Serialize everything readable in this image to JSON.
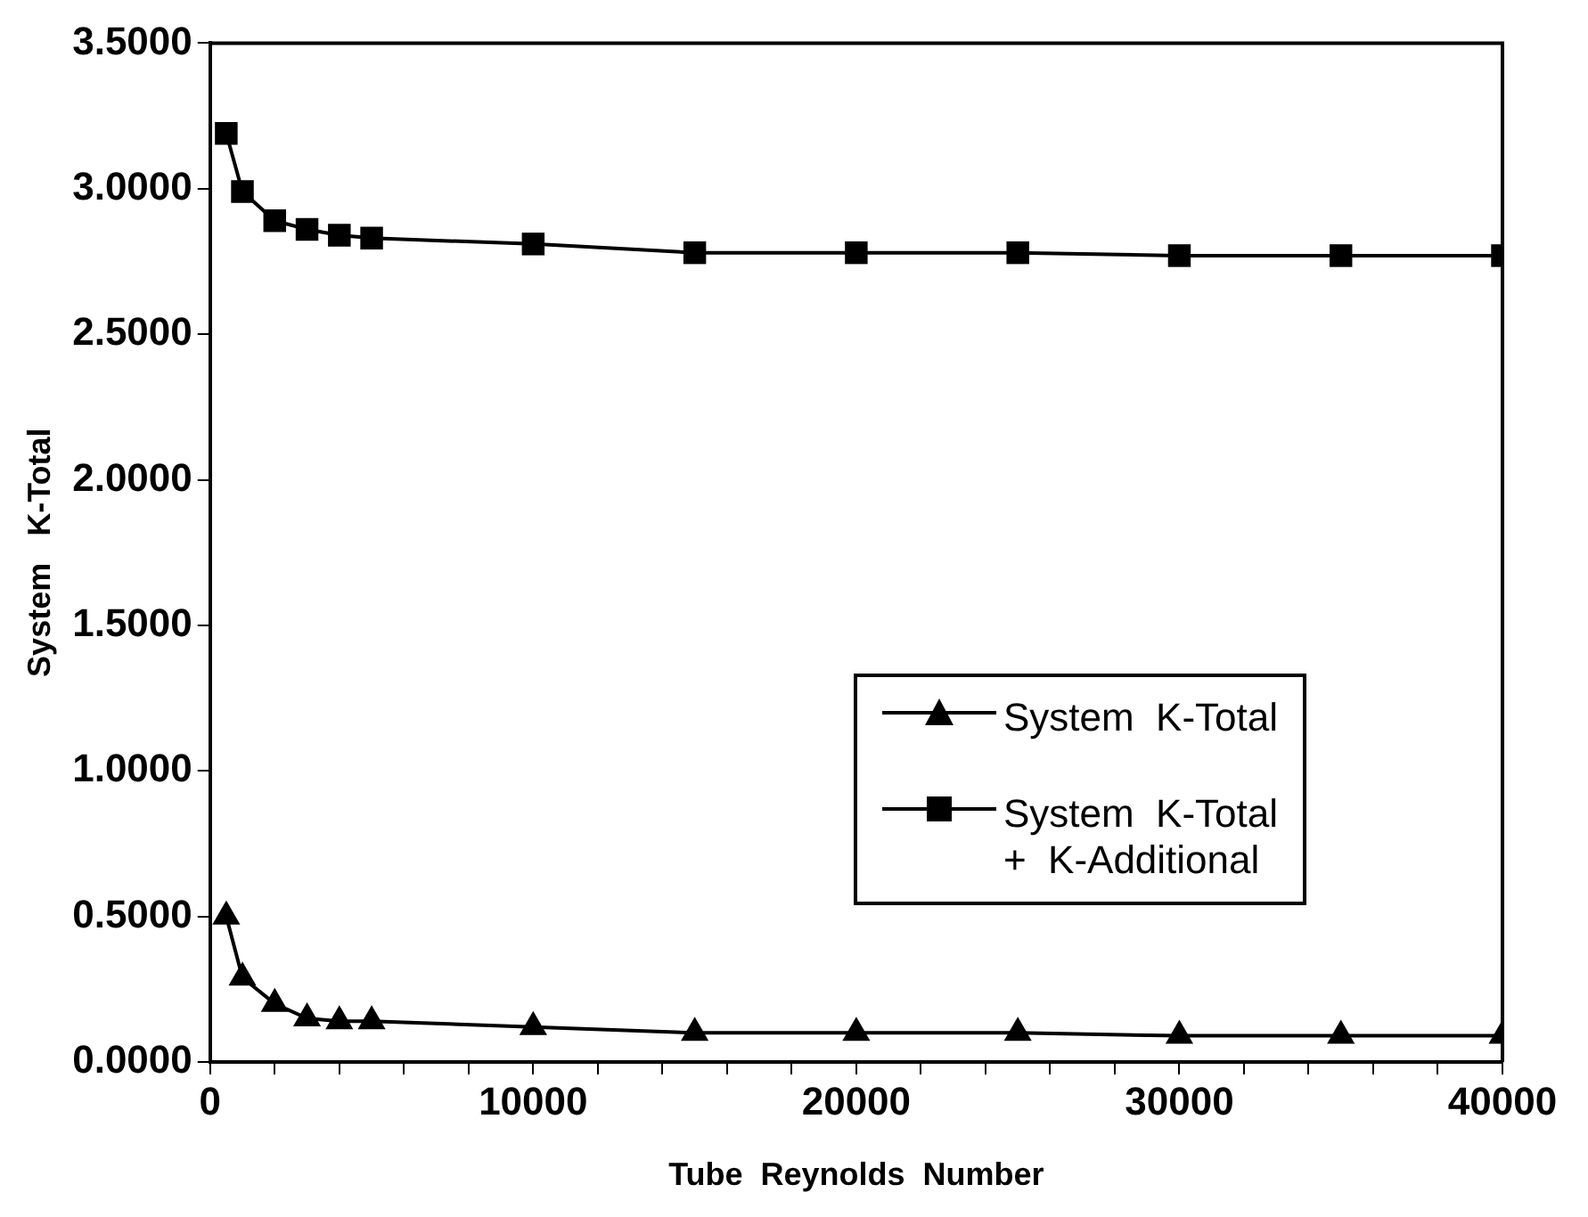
{
  "chart_data": {
    "type": "line",
    "xlabel": "Tube  Reynolds  Number",
    "ylabel": "System   K-Total",
    "x": [
      500,
      1000,
      2000,
      3000,
      4000,
      5000,
      10000,
      15000,
      20000,
      25000,
      30000,
      35000,
      40000
    ],
    "series": [
      {
        "name": "System  K-Total",
        "color": "#000000",
        "marker": "triangle",
        "values": [
          0.5,
          0.29,
          0.2,
          0.15,
          0.14,
          0.14,
          0.12,
          0.1,
          0.1,
          0.1,
          0.09,
          0.09,
          0.09
        ]
      },
      {
        "name": "System  K-Total\n+  K-Additional",
        "color": "#000000",
        "marker": "square",
        "values": [
          3.19,
          2.99,
          2.89,
          2.86,
          2.84,
          2.83,
          2.81,
          2.78,
          2.78,
          2.78,
          2.77,
          2.77,
          2.77
        ]
      }
    ],
    "xlim": [
      0,
      40000
    ],
    "xticks": [
      0,
      {
        "value": 2000,
        "label": null
      },
      {
        "value": 4000,
        "label": null
      },
      {
        "value": 6000,
        "label": null
      },
      {
        "value": 8000,
        "label": null
      },
      10000,
      {
        "value": 12000,
        "label": null
      },
      {
        "value": 14000,
        "label": null
      },
      {
        "value": 16000,
        "label": null
      },
      {
        "value": 18000,
        "label": null
      },
      20000,
      {
        "value": 22000,
        "label": null
      },
      {
        "value": 24000,
        "label": null
      },
      {
        "value": 26000,
        "label": null
      },
      {
        "value": 28000,
        "label": null
      },
      30000,
      {
        "value": 32000,
        "label": null
      },
      {
        "value": 34000,
        "label": null
      },
      {
        "value": 36000,
        "label": null
      },
      {
        "value": 38000,
        "label": null
      },
      40000
    ],
    "ylim": [
      0,
      3.5
    ],
    "yticks": [
      {
        "value": 0,
        "label": "0.0000"
      },
      {
        "value": 0.5,
        "label": "0.5000"
      },
      {
        "value": 1,
        "label": "1.0000"
      },
      {
        "value": 1.5,
        "label": "1.5000"
      },
      {
        "value": 2,
        "label": "2.0000"
      },
      {
        "value": 2.5,
        "label": "2.5000"
      },
      {
        "value": 3,
        "label": "3.0000"
      },
      {
        "value": 3.5,
        "label": "3.5000"
      }
    ],
    "grid": false,
    "legend": "right",
    "line_style": "solid"
  }
}
